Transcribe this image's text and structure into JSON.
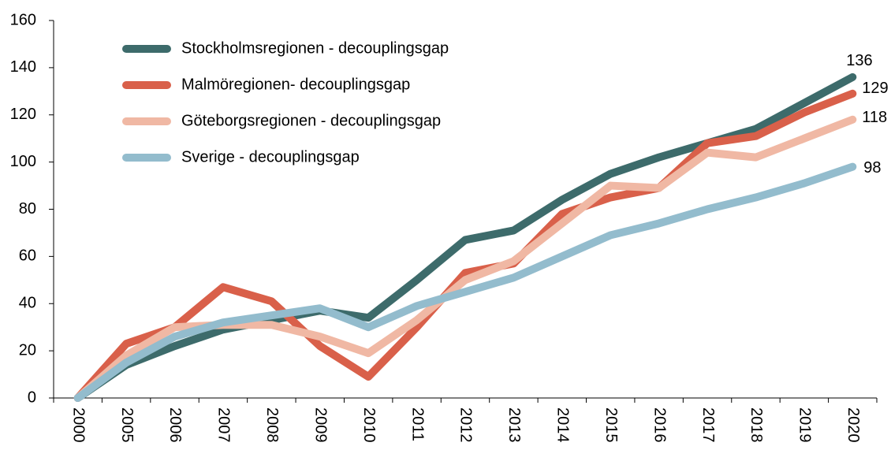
{
  "chart_data": {
    "type": "line",
    "categories": [
      "2000",
      "2005",
      "2006",
      "2007",
      "2008",
      "2009",
      "2010",
      "2011",
      "2012",
      "2013",
      "2014",
      "2015",
      "2016",
      "2017",
      "2018",
      "2019",
      "2020"
    ],
    "series": [
      {
        "name": "Stockholmsregionen - decouplingsgap",
        "color": "#3d6b6b",
        "values": [
          0,
          14,
          22,
          29,
          33,
          37,
          34,
          50,
          67,
          71,
          84,
          95,
          102,
          108,
          114,
          125,
          136
        ]
      },
      {
        "name": "Malmöregionen- decouplingsgap",
        "color": "#d9604a",
        "values": [
          0,
          23,
          30,
          47,
          41,
          22,
          9,
          30,
          53,
          57,
          78,
          85,
          89,
          108,
          111,
          121,
          129
        ]
      },
      {
        "name": "Göteborgsregionen - decouplingsgap",
        "color": "#f0b8a4",
        "values": [
          0,
          18,
          30,
          31,
          31,
          26,
          19,
          33,
          50,
          58,
          74,
          90,
          89,
          104,
          102,
          110,
          118
        ]
      },
      {
        "name": "Sverige - decouplingsgap",
        "color": "#93bccd",
        "values": [
          0,
          15,
          26,
          32,
          35,
          38,
          30,
          39,
          45,
          51,
          60,
          69,
          74,
          80,
          85,
          91,
          98
        ]
      }
    ],
    "ylim": [
      0,
      160
    ],
    "yticks": [
      0,
      20,
      40,
      60,
      80,
      100,
      120,
      140,
      160
    ],
    "legend": "upper left"
  }
}
